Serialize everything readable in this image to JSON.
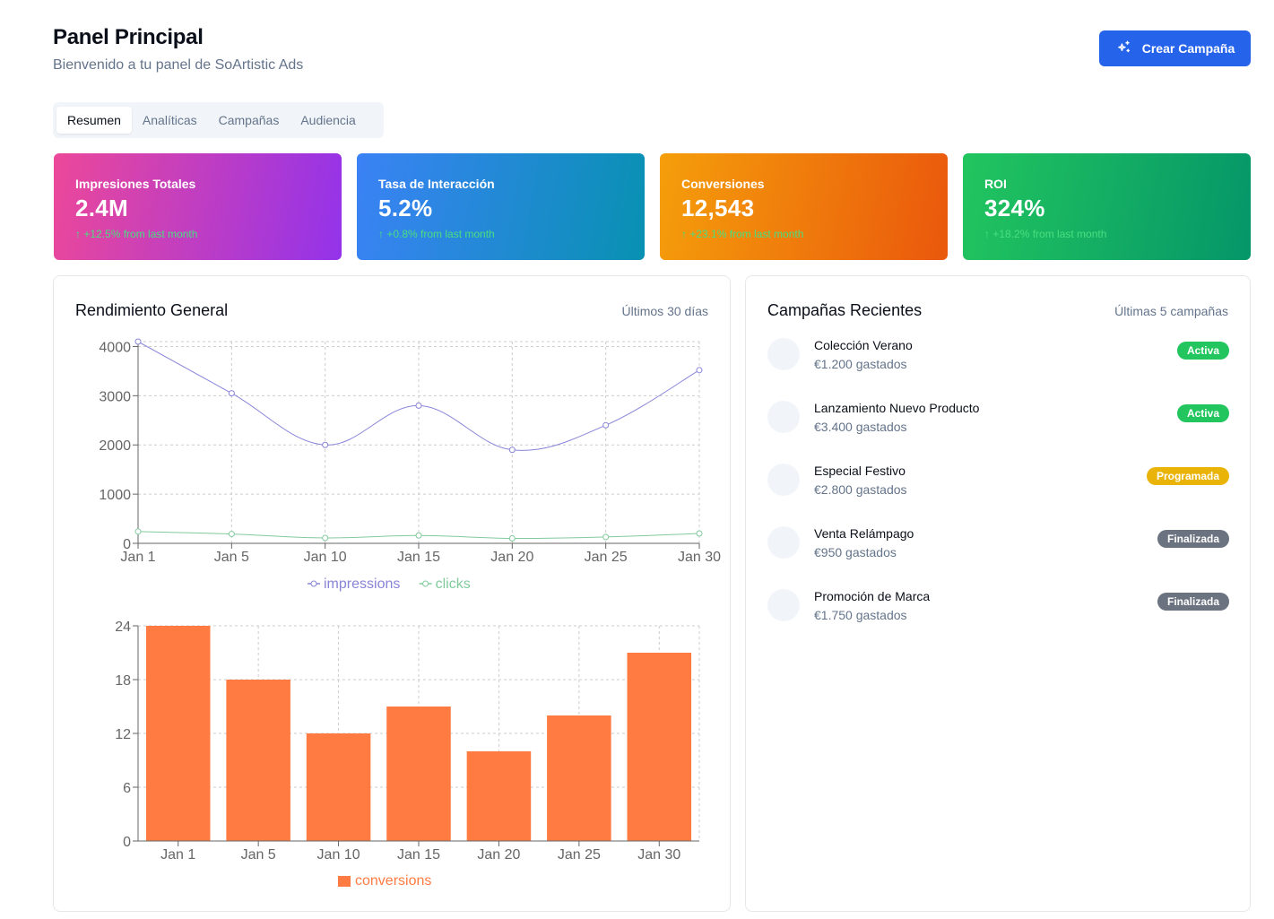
{
  "header": {
    "title": "Panel Principal",
    "subtitle": "Bienvenido a tu panel de SoArtistic Ads",
    "cta_label": "Crear Campaña"
  },
  "tabs": [
    {
      "label": "Resumen",
      "active": true
    },
    {
      "label": "Analíticas",
      "active": false
    },
    {
      "label": "Campañas",
      "active": false
    },
    {
      "label": "Audiencia",
      "active": false
    }
  ],
  "stats": [
    {
      "label": "Impresiones Totales",
      "value": "2.4M",
      "change": "↑ +12.5% from last month"
    },
    {
      "label": "Tasa de Interacción",
      "value": "5.2%",
      "change": "↑ +0.8% from last month"
    },
    {
      "label": "Conversiones",
      "value": "12,543",
      "change": "↑ +23.1% from last month"
    },
    {
      "label": "ROI",
      "value": "324%",
      "change": "↑ +18.2% from last month"
    }
  ],
  "performance": {
    "title": "Rendimiento General",
    "period": "Últimos 30 días"
  },
  "recent": {
    "title": "Campañas Recientes",
    "meta": "Últimas 5 campañas",
    "campaigns": [
      {
        "name": "Colección Verano",
        "spent": "€1.200 gastados",
        "status": "Activa",
        "status_color": "#22c55e"
      },
      {
        "name": "Lanzamiento Nuevo Producto",
        "spent": "€3.400 gastados",
        "status": "Activa",
        "status_color": "#22c55e"
      },
      {
        "name": "Especial Festivo",
        "spent": "€2.800 gastados",
        "status": "Programada",
        "status_color": "#eab308"
      },
      {
        "name": "Venta Relámpago",
        "spent": "€950 gastados",
        "status": "Finalizada",
        "status_color": "#6b7280"
      },
      {
        "name": "Promoción de Marca",
        "spent": "€1.750 gastados",
        "status": "Finalizada",
        "status_color": "#6b7280"
      }
    ]
  },
  "chart_data": [
    {
      "type": "line",
      "title": "",
      "categories": [
        "Jan 1",
        "Jan 5",
        "Jan 10",
        "Jan 15",
        "Jan 20",
        "Jan 25",
        "Jan 30"
      ],
      "series": [
        {
          "name": "impressions",
          "color": "#8884d8",
          "values": [
            4100,
            3050,
            2000,
            2800,
            1900,
            2400,
            3520
          ]
        },
        {
          "name": "clicks",
          "color": "#82ca9d",
          "values": [
            240,
            190,
            110,
            160,
            100,
            130,
            200
          ]
        }
      ],
      "yticks": [
        0,
        1000,
        2000,
        3000,
        4000
      ],
      "ylim": [
        0,
        4100
      ],
      "legend": "bottom"
    },
    {
      "type": "bar",
      "title": "",
      "categories": [
        "Jan 1",
        "Jan 5",
        "Jan 10",
        "Jan 15",
        "Jan 20",
        "Jan 25",
        "Jan 30"
      ],
      "series": [
        {
          "name": "conversions",
          "color": "#ff7b42",
          "values": [
            24,
            18,
            12,
            15,
            10,
            14,
            21
          ]
        }
      ],
      "yticks": [
        0,
        6,
        12,
        18,
        24
      ],
      "ylim": [
        0,
        24
      ],
      "legend": "bottom"
    }
  ]
}
